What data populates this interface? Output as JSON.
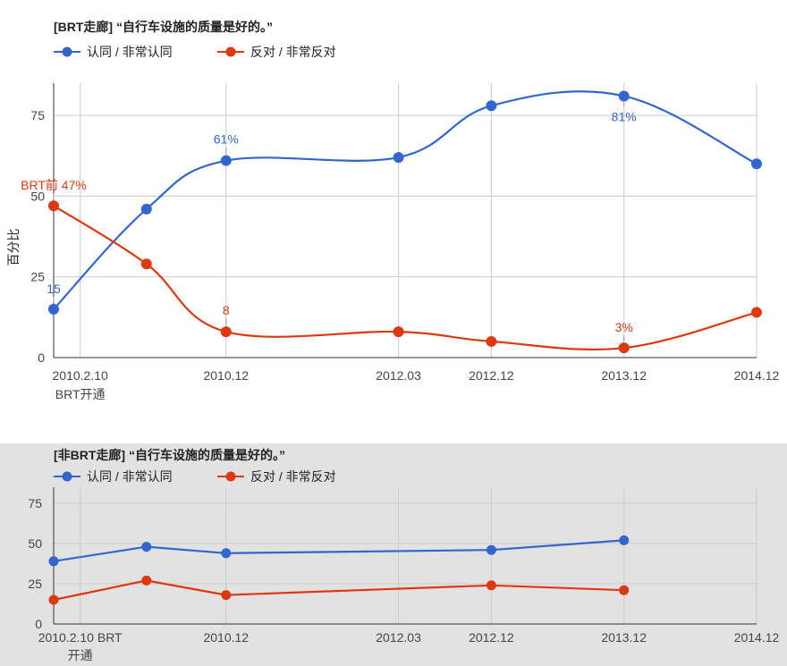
{
  "colors": {
    "blue": "#3366cc",
    "orange": "#dc3912",
    "grid": "#cccccc",
    "axis": "#333333"
  },
  "chart_data": [
    {
      "type": "line",
      "title": "[BRT走廊] “自行车设施的质量是好的。”",
      "ylabel": "百分比",
      "ylim": [
        0,
        85
      ],
      "yticks": [
        0,
        25,
        50,
        75
      ],
      "xlim": [
        2009.6,
        2014.9
      ],
      "xticks": [
        {
          "x": 2009.8,
          "label": "2010.2.10",
          "label2": "BRT开通"
        },
        {
          "x": 2010.9,
          "label": "2010.12"
        },
        {
          "x": 2012.2,
          "label": "2012.03"
        },
        {
          "x": 2012.9,
          "label": "2012.12"
        },
        {
          "x": 2013.9,
          "label": "2013.12"
        },
        {
          "x": 2014.9,
          "label": "2014.12"
        }
      ],
      "grid": true,
      "legend": "top-left",
      "series": [
        {
          "name": "认同 / 非常认同",
          "color": "#3366cc",
          "points": [
            {
              "x": 2009.6,
              "y": 15,
              "label": "15"
            },
            {
              "x": 2010.3,
              "y": 46
            },
            {
              "x": 2010.9,
              "y": 61,
              "label": "61%"
            },
            {
              "x": 2012.2,
              "y": 62
            },
            {
              "x": 2012.9,
              "y": 78
            },
            {
              "x": 2013.9,
              "y": 81,
              "label": "81%"
            },
            {
              "x": 2014.9,
              "y": 60
            }
          ]
        },
        {
          "name": "反对 / 非常反对",
          "color": "#dc3912",
          "points": [
            {
              "x": 2009.6,
              "y": 47,
              "label": "BRT前 47%"
            },
            {
              "x": 2010.3,
              "y": 29
            },
            {
              "x": 2010.9,
              "y": 8,
              "label": "8"
            },
            {
              "x": 2012.2,
              "y": 8
            },
            {
              "x": 2012.9,
              "y": 5
            },
            {
              "x": 2013.9,
              "y": 3,
              "label": "3%"
            },
            {
              "x": 2014.9,
              "y": 14
            }
          ]
        }
      ]
    },
    {
      "type": "line",
      "title": "[非BRT走廊] “自行车设施的质量是好的。”",
      "ylabel": "",
      "ylim": [
        0,
        85
      ],
      "yticks": [
        0,
        25,
        50,
        75
      ],
      "xlim": [
        2009.6,
        2014.9
      ],
      "xticks": [
        {
          "x": 2009.8,
          "label": "2010.2.10 BRT",
          "label2": "开通"
        },
        {
          "x": 2010.9,
          "label": "2010.12"
        },
        {
          "x": 2012.2,
          "label": "2012.03"
        },
        {
          "x": 2012.9,
          "label": "2012.12"
        },
        {
          "x": 2013.9,
          "label": "2013.12"
        },
        {
          "x": 2014.9,
          "label": "2014.12"
        }
      ],
      "grid": true,
      "legend": "top-left",
      "series": [
        {
          "name": "认同 / 非常认同",
          "color": "#3366cc",
          "points": [
            {
              "x": 2009.6,
              "y": 39
            },
            {
              "x": 2010.3,
              "y": 48
            },
            {
              "x": 2010.9,
              "y": 44
            },
            {
              "x": 2012.9,
              "y": 46
            },
            {
              "x": 2013.9,
              "y": 52
            }
          ]
        },
        {
          "name": "反对 / 非常反对",
          "color": "#dc3912",
          "points": [
            {
              "x": 2009.6,
              "y": 15
            },
            {
              "x": 2010.3,
              "y": 27
            },
            {
              "x": 2010.9,
              "y": 18
            },
            {
              "x": 2012.9,
              "y": 24
            },
            {
              "x": 2013.9,
              "y": 21
            }
          ]
        }
      ]
    }
  ]
}
